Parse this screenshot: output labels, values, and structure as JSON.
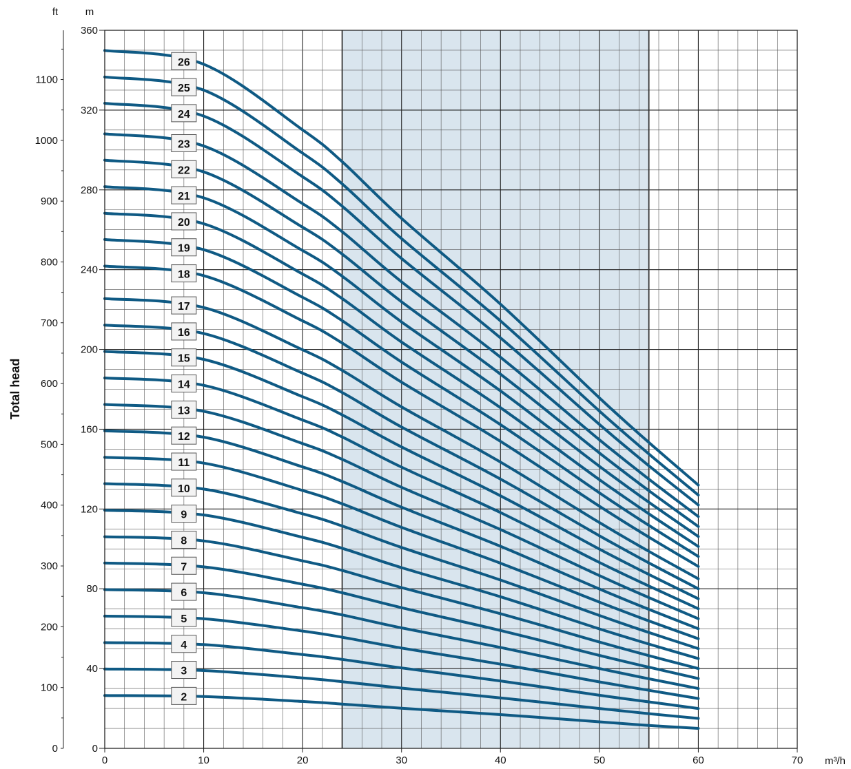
{
  "colors": {
    "curve": "#0f5a84",
    "shade": "#d9e5ee",
    "label_box": "#f3f3f3"
  },
  "chart_data": {
    "type": "line",
    "title": "",
    "xlabel": "",
    "x_unit_label": "m³/h",
    "ylabel": "Total head",
    "y_unit_label_left": "ft",
    "y_unit_label_right": "m",
    "xlim": [
      0,
      70
    ],
    "ylim_m": [
      0,
      360
    ],
    "ylim_ft": [
      0,
      1181
    ],
    "x_ticks": [
      0,
      10,
      20,
      30,
      40,
      50,
      60,
      70
    ],
    "y_ticks_m": [
      0,
      40,
      80,
      120,
      160,
      200,
      240,
      280,
      320,
      360
    ],
    "y_ticks_ft": [
      0,
      100,
      200,
      300,
      400,
      500,
      600,
      700,
      800,
      900,
      1000,
      1100
    ],
    "x_tick_labels": [
      "0",
      "10",
      "20",
      "30",
      "40",
      "50",
      "60",
      "70"
    ],
    "y_tick_labels_m": [
      "0",
      "40",
      "80",
      "120",
      "160",
      "200",
      "240",
      "280",
      "320",
      "360"
    ],
    "y_tick_labels_ft": [
      "0",
      "100",
      "200",
      "300",
      "400",
      "500",
      "600",
      "700",
      "800",
      "900",
      "1000",
      "1100"
    ],
    "grid": true,
    "recommended_range": [
      24,
      55
    ],
    "x": [
      0,
      10,
      20,
      24,
      30,
      40,
      50,
      55,
      60
    ],
    "series": [
      {
        "name": "2",
        "values": [
          26.5,
          26,
          23.5,
          22.2,
          20.1,
          16.9,
          13.3,
          11.5,
          10.0
        ]
      },
      {
        "name": "3",
        "values": [
          39.8,
          39,
          35.3,
          33.4,
          30.2,
          25.3,
          20.0,
          17.4,
          15.0
        ]
      },
      {
        "name": "4",
        "values": [
          53.0,
          52,
          47.0,
          44.6,
          40.3,
          33.8,
          26.6,
          23.3,
          20.0
        ]
      },
      {
        "name": "5",
        "values": [
          66.3,
          65,
          58.8,
          55.7,
          50.3,
          42.2,
          33.3,
          29.1,
          25.0
        ]
      },
      {
        "name": "6",
        "values": [
          79.6,
          78,
          70.5,
          66.9,
          60.4,
          50.6,
          40.0,
          34.9,
          30.0
        ]
      },
      {
        "name": "7",
        "values": [
          92.9,
          91,
          82.3,
          78.0,
          70.5,
          59.1,
          46.6,
          40.7,
          35.0
        ]
      },
      {
        "name": "8",
        "values": [
          106.1,
          104,
          94.0,
          89.2,
          80.6,
          67.5,
          53.3,
          46.5,
          40.0
        ]
      },
      {
        "name": "9",
        "values": [
          119.4,
          117,
          105.8,
          100.3,
          90.6,
          76.0,
          59.9,
          52.3,
          45.0
        ]
      },
      {
        "name": "10",
        "values": [
          132.7,
          130,
          117.6,
          111.5,
          100.7,
          84.4,
          66.6,
          58.1,
          50.0
        ]
      },
      {
        "name": "11",
        "values": [
          145.9,
          143,
          129.3,
          122.6,
          110.8,
          92.8,
          73.3,
          63.9,
          55.0
        ]
      },
      {
        "name": "12",
        "values": [
          159.2,
          156,
          141.1,
          133.8,
          120.9,
          101.3,
          79.9,
          69.7,
          60.0
        ]
      },
      {
        "name": "13",
        "values": [
          172.4,
          169,
          152.8,
          144.9,
          130.9,
          109.7,
          86.6,
          75.6,
          65.0
        ]
      },
      {
        "name": "14",
        "values": [
          185.7,
          182,
          164.6,
          156.1,
          141.0,
          118.2,
          93.2,
          81.4,
          70.0
        ]
      },
      {
        "name": "15",
        "values": [
          199.0,
          195,
          176.3,
          167.2,
          151.1,
          126.6,
          99.9,
          87.2,
          75.0
        ]
      },
      {
        "name": "16",
        "values": [
          212.2,
          208,
          188.1,
          178.4,
          161.1,
          135.0,
          106.6,
          93.0,
          80.0
        ]
      },
      {
        "name": "17",
        "values": [
          225.5,
          221,
          199.8,
          189.5,
          171.2,
          143.5,
          113.2,
          98.8,
          85.0
        ]
      },
      {
        "name": "18",
        "values": [
          241.8,
          237,
          214.3,
          203.2,
          183.6,
          153.9,
          121.4,
          105.9,
          91.2
        ]
      },
      {
        "name": "19",
        "values": [
          255.1,
          250,
          226.1,
          214.4,
          193.7,
          162.3,
          128.1,
          111.8,
          96.2
        ]
      },
      {
        "name": "20",
        "values": [
          268.3,
          263,
          237.8,
          225.5,
          203.7,
          170.8,
          134.7,
          117.6,
          101.2
        ]
      },
      {
        "name": "21",
        "values": [
          281.6,
          276,
          249.6,
          236.7,
          213.8,
          179.2,
          141.4,
          123.4,
          106.2
        ]
      },
      {
        "name": "22",
        "values": [
          294.9,
          289,
          261.3,
          247.8,
          223.9,
          187.6,
          148.1,
          129.2,
          111.2
        ]
      },
      {
        "name": "23",
        "values": [
          308.1,
          302,
          273.1,
          259.0,
          233.9,
          196.1,
          154.7,
          135.0,
          116.2
        ]
      },
      {
        "name": "24",
        "values": [
          323.4,
          317,
          286.6,
          271.8,
          245.6,
          205.8,
          162.4,
          141.7,
          122.0
        ]
      },
      {
        "name": "25",
        "values": [
          336.6,
          330,
          298.4,
          283.0,
          255.6,
          214.3,
          169.1,
          147.6,
          127.0
        ]
      },
      {
        "name": "26",
        "values": [
          349.9,
          343,
          310.1,
          294.1,
          265.7,
          222.7,
          175.7,
          153.4,
          132.0
        ]
      }
    ]
  }
}
